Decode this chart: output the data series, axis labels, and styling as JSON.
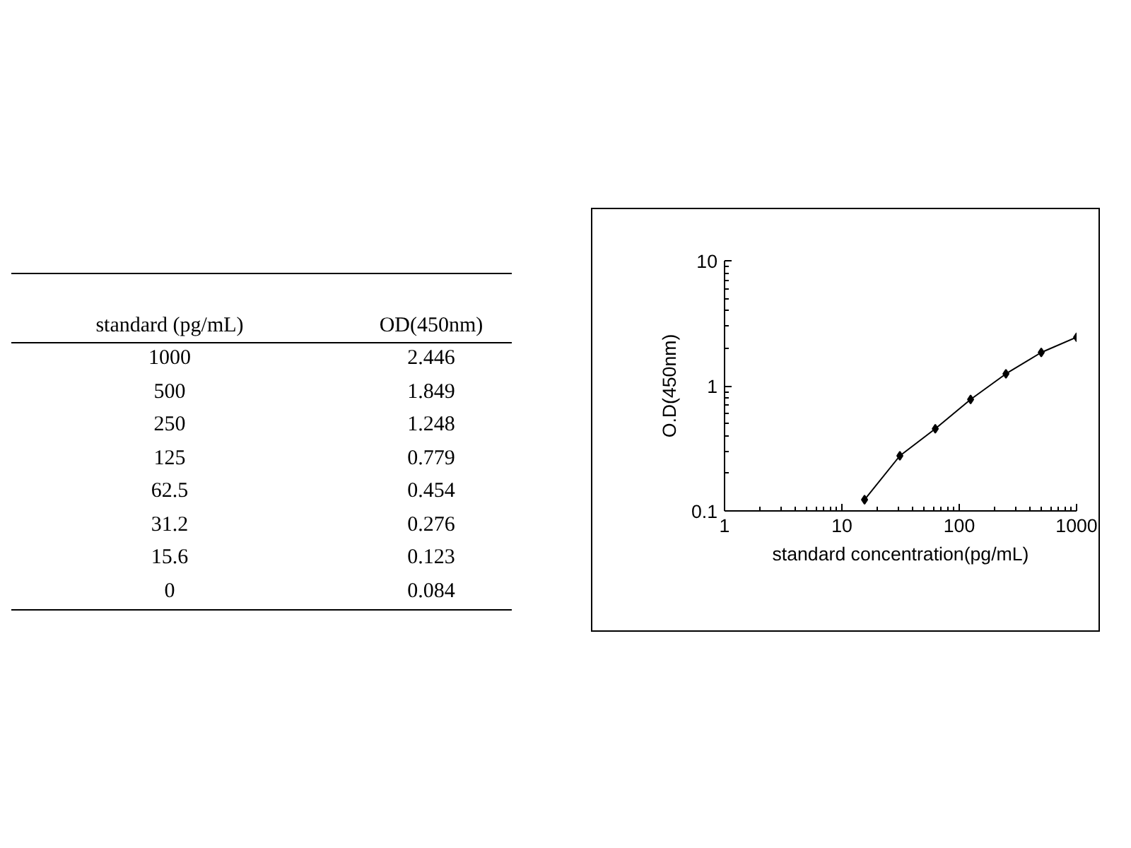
{
  "chart_data": {
    "type": "line",
    "xlabel": "standard concentration(pg/mL)",
    "ylabel": "O.D(450nm)",
    "x": [
      1000,
      500,
      250,
      125,
      62.5,
      31.2,
      15.6
    ],
    "values": [
      2.446,
      1.849,
      1.248,
      0.779,
      0.454,
      0.276,
      0.123
    ],
    "color": "#000000",
    "marker": "diamond",
    "log": "xy",
    "xlim": [
      1,
      1000
    ],
    "ylim": [
      0.1,
      10
    ],
    "xticks": [
      1,
      10,
      100,
      1000
    ],
    "yticks": [
      0.1,
      1,
      10
    ],
    "annotations": [
      "standard (pg/mL)",
      "OD(450nm)",
      "1000",
      "2.446",
      "500",
      "1.849",
      "250",
      "1.248",
      "125",
      "0.779",
      "62.5",
      "0.454",
      "31.2",
      "0.276",
      "15.6",
      "0.123",
      "0",
      "0.084"
    ]
  }
}
